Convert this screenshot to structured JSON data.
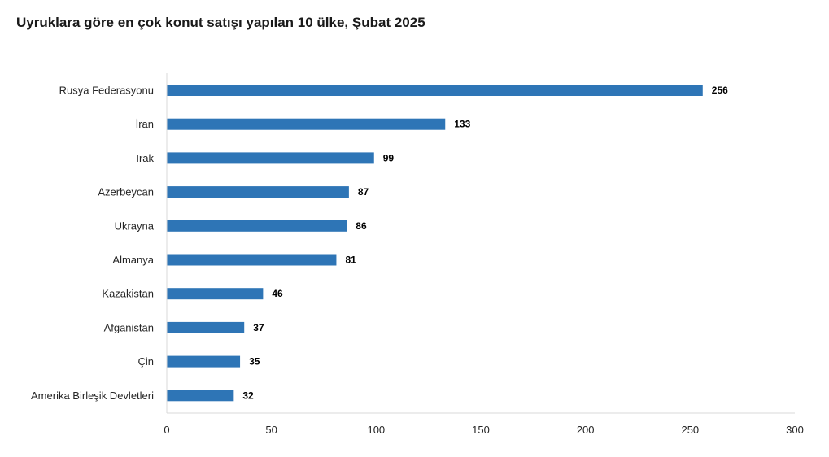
{
  "chart_data": {
    "type": "bar",
    "orientation": "horizontal",
    "title": "Uyruklara göre en çok konut satışı yapılan 10 ülke, Şubat 2025",
    "categories": [
      "Rusya Federasyonu",
      "İran",
      "Irak",
      "Azerbeycan",
      "Ukrayna",
      "Almanya",
      "Kazakistan",
      "Afganistan",
      "Çin",
      "Amerika Birleşik Devletleri"
    ],
    "values": [
      256,
      133,
      99,
      87,
      86,
      81,
      46,
      37,
      35,
      32
    ],
    "xlim": [
      0,
      300
    ],
    "xticks": [
      0,
      50,
      100,
      150,
      200,
      250,
      300
    ],
    "xlabel": "",
    "ylabel": "",
    "grid": false,
    "legend": "none",
    "bar_color": "#2e75b6"
  }
}
